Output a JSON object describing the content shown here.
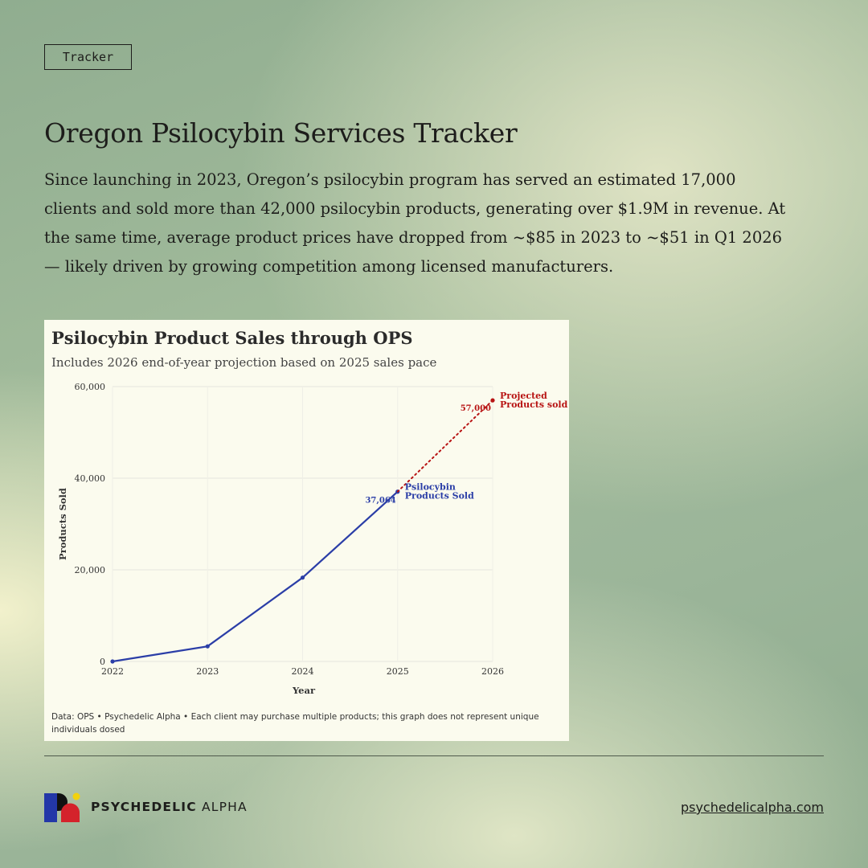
{
  "tag": "Tracker",
  "title": "Oregon Psilocybin Services Tracker",
  "intro": "Since launching in 2023, Oregon’s psilocybin program has served an estimated 17,000 clients and sold more than 42,000 psilocybin products, generating over $1.9M in revenue. At the same time, average product prices have dropped from ~$85 in 2023 to ~$51 in Q1 2026 — likely driven by growing competition among licensed manufacturers.",
  "chart_data": {
    "type": "line",
    "title": "Psilocybin Product Sales through OPS",
    "subtitle": "Includes 2026 end-of-year projection based on 2025 sales pace",
    "xlabel": "Year",
    "ylabel": "Products Sold",
    "ylim": [
      0,
      60000
    ],
    "xlim": [
      2022,
      2026
    ],
    "x_ticks": [
      2022,
      2023,
      2024,
      2025,
      2026
    ],
    "y_ticks": [
      0,
      20000,
      40000,
      60000
    ],
    "y_tick_labels": [
      "0",
      "20,000",
      "40,000",
      "60,000"
    ],
    "grid": true,
    "series": [
      {
        "name": "Psilocybin Products Sold",
        "label_lines": [
          "Psilocybin",
          "Products Sold"
        ],
        "color": "#2b3ea7",
        "style": "solid",
        "x": [
          2022,
          2023,
          2024,
          2025
        ],
        "values": [
          0,
          3300,
          18300,
          37064
        ],
        "end_value_label": "37,064"
      },
      {
        "name": "Projected Products sold",
        "label_lines": [
          "Projected",
          "Products sold"
        ],
        "color": "#b81414",
        "style": "dotted",
        "x": [
          2025,
          2026
        ],
        "values": [
          37064,
          57000
        ],
        "end_value_label": "57,000"
      }
    ],
    "footnote_lines": [
      "Data: OPS • Psychedelic Alpha • Each client may purchase multiple products; this graph does not represent unique",
      "individuals dosed"
    ]
  },
  "brand": {
    "name_bold": "PSYCHEDELIC",
    "name_light": "ALPHA",
    "logo_colors": {
      "blue": "#2337a8",
      "red": "#d4232b",
      "yellow": "#f2d20e",
      "black": "#111111"
    }
  },
  "website": "psychedelicalpha.com"
}
